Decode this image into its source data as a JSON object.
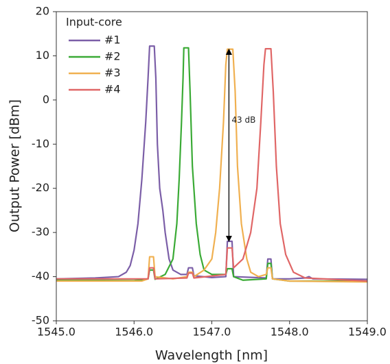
{
  "chart_data": {
    "type": "line",
    "xlabel": "Wavelength [nm]",
    "ylabel": "Output Power [dBm]",
    "xlim": [
      1545,
      1549
    ],
    "ylim": [
      -50,
      20
    ],
    "xticks": [
      {
        "value": 1545,
        "label": "1545.0"
      },
      {
        "value": 1546,
        "label": "1546.0"
      },
      {
        "value": 1547,
        "label": "1547.0"
      },
      {
        "value": 1548,
        "label": "1548.0"
      },
      {
        "value": 1549,
        "label": "1549.0"
      }
    ],
    "yticks": [
      20,
      10,
      0,
      -10,
      -20,
      -30,
      -40,
      -50
    ],
    "legend_title": "Input-core",
    "legend": "upper left",
    "series": [
      {
        "name": "#1",
        "color": "#7b5ea7",
        "x": [
          1545,
          1545.5,
          1545.8,
          1545.9,
          1545.95,
          1546.0,
          1546.05,
          1546.1,
          1546.15,
          1546.18,
          1546.2,
          1546.26,
          1546.28,
          1546.3,
          1546.33,
          1546.37,
          1546.4,
          1546.45,
          1546.5,
          1546.6,
          1546.68,
          1546.7,
          1546.75,
          1546.77,
          1547.0,
          1547.18,
          1547.2,
          1547.26,
          1547.28,
          1547.7,
          1547.72,
          1547.76,
          1547.78,
          1548.0,
          1548.2,
          1548.25,
          1548.3,
          1549
        ],
        "values": [
          -40.5,
          -40.3,
          -40,
          -39,
          -37.5,
          -34,
          -28,
          -18,
          -5,
          5,
          12.2,
          12.2,
          5,
          -10,
          -20,
          -25,
          -30,
          -36,
          -38.5,
          -39.5,
          -39.5,
          -38,
          -38,
          -39.8,
          -40.2,
          -40,
          -32,
          -32,
          -40,
          -40.3,
          -36,
          -36,
          -40.5,
          -40.5,
          -40.3,
          -40,
          -40.5,
          -40.6
        ]
      },
      {
        "name": "#2",
        "color": "#3aaa35",
        "x": [
          1545,
          1546.0,
          1546.18,
          1546.2,
          1546.25,
          1546.27,
          1546.4,
          1546.5,
          1546.55,
          1546.58,
          1546.61,
          1546.63,
          1546.64,
          1546.7,
          1546.72,
          1546.75,
          1546.8,
          1546.85,
          1546.9,
          1547.0,
          1547.18,
          1547.2,
          1547.26,
          1547.28,
          1547.4,
          1547.7,
          1547.72,
          1547.76,
          1547.78,
          1548.0,
          1549
        ],
        "values": [
          -40.8,
          -40.9,
          -40.5,
          -38.5,
          -38.5,
          -40.6,
          -39.5,
          -36,
          -28,
          -18,
          -5,
          5,
          11.8,
          11.8,
          2,
          -15,
          -28,
          -35,
          -38.5,
          -39.5,
          -39.5,
          -38.2,
          -38.2,
          -40,
          -40.8,
          -40.5,
          -37,
          -37,
          -40.5,
          -41,
          -41
        ]
      },
      {
        "name": "#3",
        "color": "#f0b050",
        "x": [
          1545,
          1546.1,
          1546.18,
          1546.2,
          1546.25,
          1546.27,
          1546.5,
          1546.68,
          1546.7,
          1546.75,
          1546.77,
          1546.9,
          1547.0,
          1547.05,
          1547.1,
          1547.15,
          1547.18,
          1547.2,
          1547.27,
          1547.3,
          1547.33,
          1547.38,
          1547.45,
          1547.5,
          1547.6,
          1547.7,
          1547.72,
          1547.76,
          1547.78,
          1548.0,
          1549
        ],
        "values": [
          -41,
          -41,
          -40.5,
          -35.5,
          -35.5,
          -40,
          -40.5,
          -40,
          -39,
          -39,
          -40,
          -38.5,
          -36,
          -30,
          -20,
          -5,
          8,
          11.5,
          11.5,
          2,
          -15,
          -28,
          -36,
          -39,
          -40,
          -39.5,
          -38,
          -38,
          -40.5,
          -41,
          -41.2
        ]
      },
      {
        "name": "#4",
        "color": "#e06666",
        "x": [
          1545,
          1546.18,
          1546.2,
          1546.25,
          1546.27,
          1546.68,
          1546.7,
          1546.75,
          1546.77,
          1547.18,
          1547.2,
          1547.26,
          1547.28,
          1547.4,
          1547.5,
          1547.58,
          1547.63,
          1547.67,
          1547.69,
          1547.76,
          1547.79,
          1547.83,
          1547.88,
          1547.95,
          1548.05,
          1548.2,
          1549
        ],
        "values": [
          -40.5,
          -40.5,
          -38,
          -38,
          -40.5,
          -40.3,
          -39.2,
          -39.2,
          -40.3,
          -39.5,
          -33.5,
          -33.5,
          -38,
          -36,
          -30,
          -20,
          -5,
          8,
          11.6,
          11.6,
          2,
          -15,
          -28,
          -35,
          -39,
          -40.3,
          -41
        ]
      }
    ],
    "annotation": {
      "text": "43 dB",
      "x": 1547.22,
      "y_from": -32,
      "y_to": 11.5
    }
  }
}
